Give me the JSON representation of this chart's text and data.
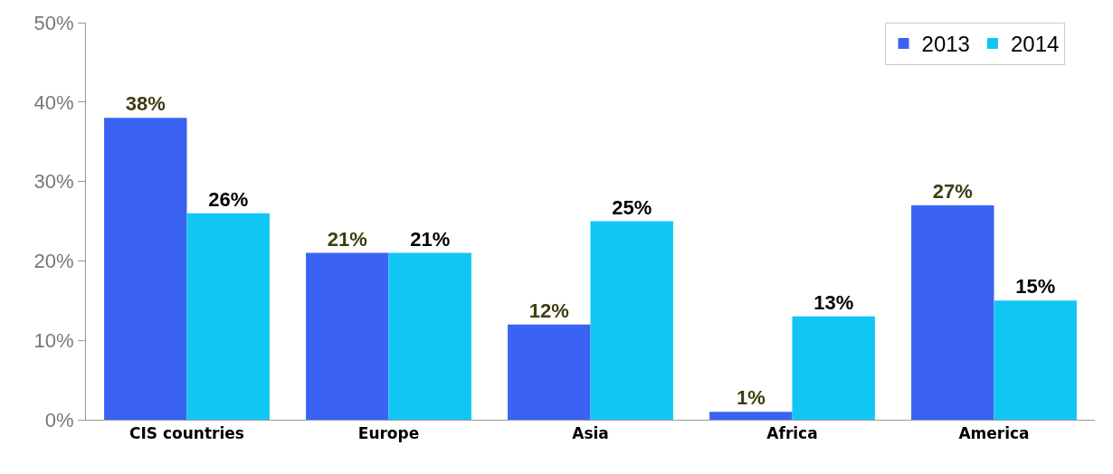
{
  "chart_data": {
    "type": "bar",
    "categories": [
      "CIS countries",
      "Europe",
      "Asia",
      "Africa",
      "America"
    ],
    "series": [
      {
        "name": "2013",
        "color": "#3a63f3",
        "values": [
          38,
          21,
          12,
          1,
          27
        ],
        "value_labels": [
          "38%",
          "21%",
          "12%",
          "1%",
          "27%"
        ]
      },
      {
        "name": "2014",
        "color": "#12c6f3",
        "values": [
          26,
          21,
          25,
          13,
          15
        ],
        "value_labels": [
          "26%",
          "21%",
          "25%",
          "13%",
          "15%"
        ]
      }
    ],
    "ylim": [
      0,
      50
    ],
    "yticks": [
      {
        "value": 0,
        "label": "0%"
      },
      {
        "value": 10,
        "label": "10%"
      },
      {
        "value": 20,
        "label": "20%"
      },
      {
        "value": 30,
        "label": "30%"
      },
      {
        "value": 40,
        "label": "40%"
      },
      {
        "value": 50,
        "label": "50%"
      }
    ],
    "legend": "top right"
  }
}
